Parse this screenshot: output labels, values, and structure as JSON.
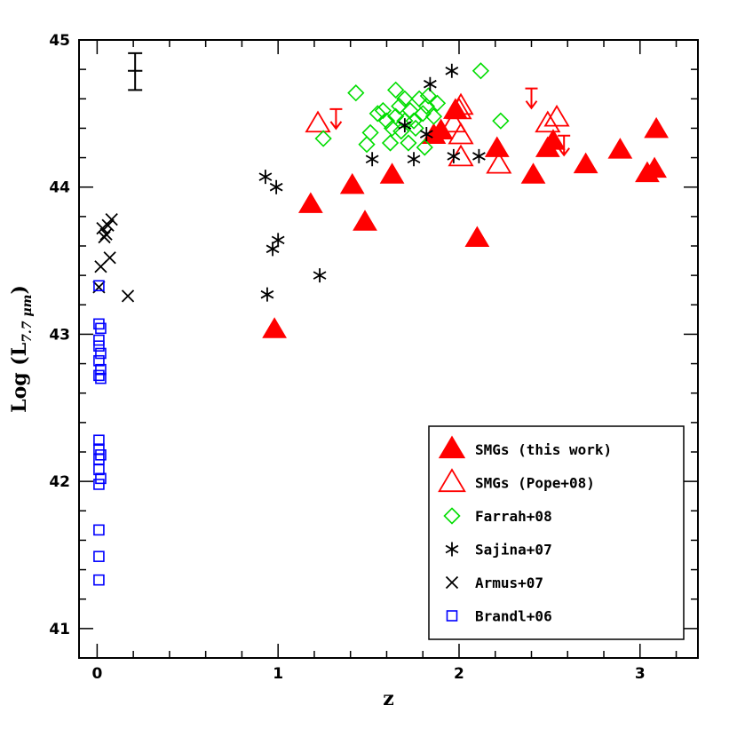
{
  "chart_data": {
    "type": "scatter",
    "xlabel": "z",
    "ylabel": {
      "prefix": "Log (L",
      "subscript": "7.7 μm",
      "suffix": ")"
    },
    "xlim": [
      -0.1,
      3.32
    ],
    "ylim": [
      40.8,
      45.0
    ],
    "xticks": [
      0,
      1,
      2,
      3
    ],
    "yticks": [
      41,
      42,
      43,
      44,
      45
    ],
    "x_tick_labels": [
      "0",
      "1",
      "2",
      "3"
    ],
    "y_tick_labels": [
      "41",
      "42",
      "43",
      "44",
      "45"
    ],
    "x_minor_step": 0.2,
    "y_minor_step": 0.2,
    "legend_position": "bottom-right",
    "series": [
      {
        "name": "SMGs (this work)",
        "marker": "filled-triangle",
        "color": "#ff0000",
        "points": [
          [
            0.98,
            43.03
          ],
          [
            1.18,
            43.88
          ],
          [
            1.41,
            44.01
          ],
          [
            1.48,
            43.76
          ],
          [
            1.63,
            44.08
          ],
          [
            1.86,
            44.35
          ],
          [
            1.9,
            44.38
          ],
          [
            1.98,
            44.52
          ],
          [
            2.1,
            43.65
          ],
          [
            2.21,
            44.26
          ],
          [
            2.41,
            44.08
          ],
          [
            2.49,
            44.26
          ],
          [
            2.52,
            44.31
          ],
          [
            2.7,
            44.15
          ],
          [
            2.89,
            44.25
          ],
          [
            3.04,
            44.09
          ],
          [
            3.08,
            44.12
          ],
          [
            3.09,
            44.39
          ]
        ]
      },
      {
        "name": "SMGs (Pope+08)",
        "marker": "open-triangle",
        "color": "#ff0000",
        "points": [
          [
            1.22,
            44.43
          ],
          [
            1.97,
            44.43
          ],
          [
            2.0,
            44.52
          ],
          [
            2.01,
            44.2
          ],
          [
            2.01,
            44.55
          ],
          [
            2.01,
            44.35
          ],
          [
            2.22,
            44.15
          ],
          [
            2.49,
            44.43
          ],
          [
            2.54,
            44.47
          ]
        ]
      },
      {
        "name": "Farrah+08",
        "marker": "open-diamond",
        "color": "#00dd00",
        "points": [
          [
            1.25,
            44.33
          ],
          [
            1.43,
            44.64
          ],
          [
            1.49,
            44.29
          ],
          [
            1.51,
            44.37
          ],
          [
            1.55,
            44.5
          ],
          [
            1.58,
            44.52
          ],
          [
            1.6,
            44.45
          ],
          [
            1.62,
            44.3
          ],
          [
            1.63,
            44.4
          ],
          [
            1.65,
            44.48
          ],
          [
            1.65,
            44.66
          ],
          [
            1.67,
            44.55
          ],
          [
            1.68,
            44.38
          ],
          [
            1.7,
            44.6
          ],
          [
            1.7,
            44.45
          ],
          [
            1.72,
            44.3
          ],
          [
            1.73,
            44.52
          ],
          [
            1.75,
            44.45
          ],
          [
            1.76,
            44.4
          ],
          [
            1.78,
            44.6
          ],
          [
            1.8,
            44.5
          ],
          [
            1.81,
            44.27
          ],
          [
            1.82,
            44.55
          ],
          [
            1.83,
            44.62
          ],
          [
            1.86,
            44.48
          ],
          [
            1.88,
            44.57
          ],
          [
            2.12,
            44.79
          ],
          [
            2.23,
            44.45
          ]
        ]
      },
      {
        "name": "Sajina+07",
        "marker": "asterisk",
        "color": "#000000",
        "points": [
          [
            0.93,
            44.07
          ],
          [
            0.94,
            43.27
          ],
          [
            0.97,
            43.58
          ],
          [
            0.99,
            44.0
          ],
          [
            1.0,
            43.64
          ],
          [
            1.23,
            43.4
          ],
          [
            1.52,
            44.19
          ],
          [
            1.7,
            44.42
          ],
          [
            1.75,
            44.19
          ],
          [
            1.82,
            44.36
          ],
          [
            1.84,
            44.7
          ],
          [
            1.96,
            44.79
          ],
          [
            1.97,
            44.21
          ],
          [
            2.11,
            44.21
          ]
        ]
      },
      {
        "name": "Armus+07",
        "marker": "cross",
        "color": "#000000",
        "points": [
          [
            0.01,
            43.32
          ],
          [
            0.02,
            43.46
          ],
          [
            0.03,
            43.72
          ],
          [
            0.04,
            43.66
          ],
          [
            0.05,
            43.68
          ],
          [
            0.06,
            43.74
          ],
          [
            0.07,
            43.52
          ],
          [
            0.08,
            43.78
          ],
          [
            0.17,
            43.26
          ]
        ]
      },
      {
        "name": "Brandl+06",
        "marker": "open-square",
        "color": "#0000ff",
        "points": [
          [
            0.01,
            43.33
          ],
          [
            0.01,
            43.07
          ],
          [
            0.02,
            43.04
          ],
          [
            0.01,
            42.96
          ],
          [
            0.01,
            42.92
          ],
          [
            0.02,
            42.87
          ],
          [
            0.01,
            42.82
          ],
          [
            0.02,
            42.76
          ],
          [
            0.01,
            42.72
          ],
          [
            0.02,
            42.7
          ],
          [
            0.01,
            42.28
          ],
          [
            0.01,
            42.22
          ],
          [
            0.02,
            42.18
          ],
          [
            0.01,
            42.15
          ],
          [
            0.01,
            42.08
          ],
          [
            0.02,
            42.02
          ],
          [
            0.01,
            41.98
          ],
          [
            0.01,
            41.67
          ],
          [
            0.01,
            41.49
          ],
          [
            0.01,
            41.33
          ]
        ]
      }
    ],
    "upper_limits": [
      {
        "x": 1.32,
        "y": 44.53,
        "color": "#ff0000"
      },
      {
        "x": 2.4,
        "y": 44.67,
        "color": "#ff0000"
      },
      {
        "x": 2.58,
        "y": 44.35,
        "color": "#ff0000"
      }
    ],
    "error_bar": {
      "x": 0.21,
      "y": 44.79,
      "ylo": 44.66,
      "yhi": 44.91,
      "xlo": 0.17,
      "xhi": 0.25
    }
  }
}
